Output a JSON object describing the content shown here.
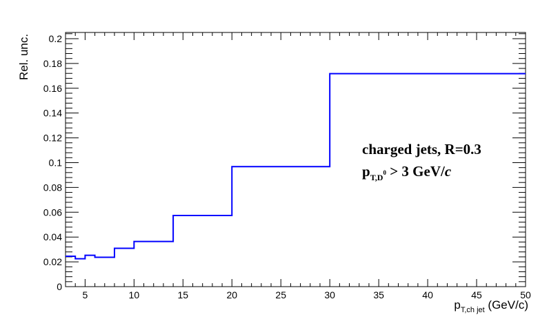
{
  "chart_data": {
    "type": "line",
    "step": true,
    "xlabel": {
      "main": "p",
      "sub": "T,ch jet",
      "unit": " (GeV/c)"
    },
    "ylabel": "Rel. unc.",
    "xlim": [
      3,
      50
    ],
    "ylim": [
      0,
      0.205
    ],
    "x_ticks": [
      5,
      10,
      15,
      20,
      25,
      30,
      35,
      40,
      45,
      50
    ],
    "y_ticks": [
      0,
      0.02,
      0.04,
      0.06,
      0.08,
      0.1,
      0.12,
      0.14,
      0.16,
      0.18,
      0.2
    ],
    "series": [
      {
        "color": "#0000ff",
        "bin_edges": [
          3,
          4,
          5,
          6,
          8,
          10,
          14,
          20,
          30,
          50
        ],
        "values": [
          0.0245,
          0.0225,
          0.0253,
          0.0237,
          0.0309,
          0.0364,
          0.0574,
          0.0968,
          0.1718
        ]
      }
    ],
    "annotation": {
      "line1": "charged jets, R=0.3",
      "line2_main": "p",
      "line2_sub": "T,D",
      "line2_sup": "0",
      "line2_rest": " > 3 GeV/",
      "line2_unit": "c"
    }
  }
}
